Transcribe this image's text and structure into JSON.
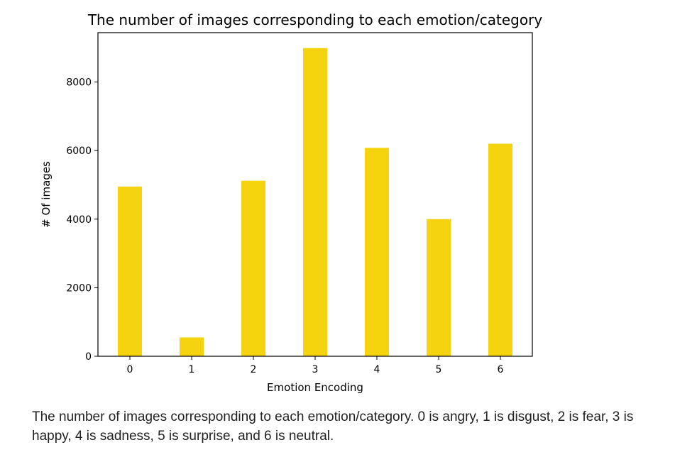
{
  "chart_data": {
    "type": "bar",
    "title": "The number of images corresponding to each emotion/category",
    "xlabel": "Emotion Encoding",
    "ylabel": "# Of images",
    "categories": [
      "0",
      "1",
      "2",
      "3",
      "4",
      "5",
      "6"
    ],
    "values": [
      4950,
      550,
      5120,
      8990,
      6080,
      4000,
      6200
    ],
    "ylim": [
      0,
      9440
    ],
    "yticks": [
      0,
      2000,
      4000,
      6000,
      8000
    ],
    "bar_color": "#f5d40f",
    "grid": false
  },
  "caption": "The number of images corresponding to each emotion/category. 0 is angry, 1 is disgust, 2 is fear, 3 is happy, 4 is sadness, 5 is surprise, and 6 is neutral."
}
